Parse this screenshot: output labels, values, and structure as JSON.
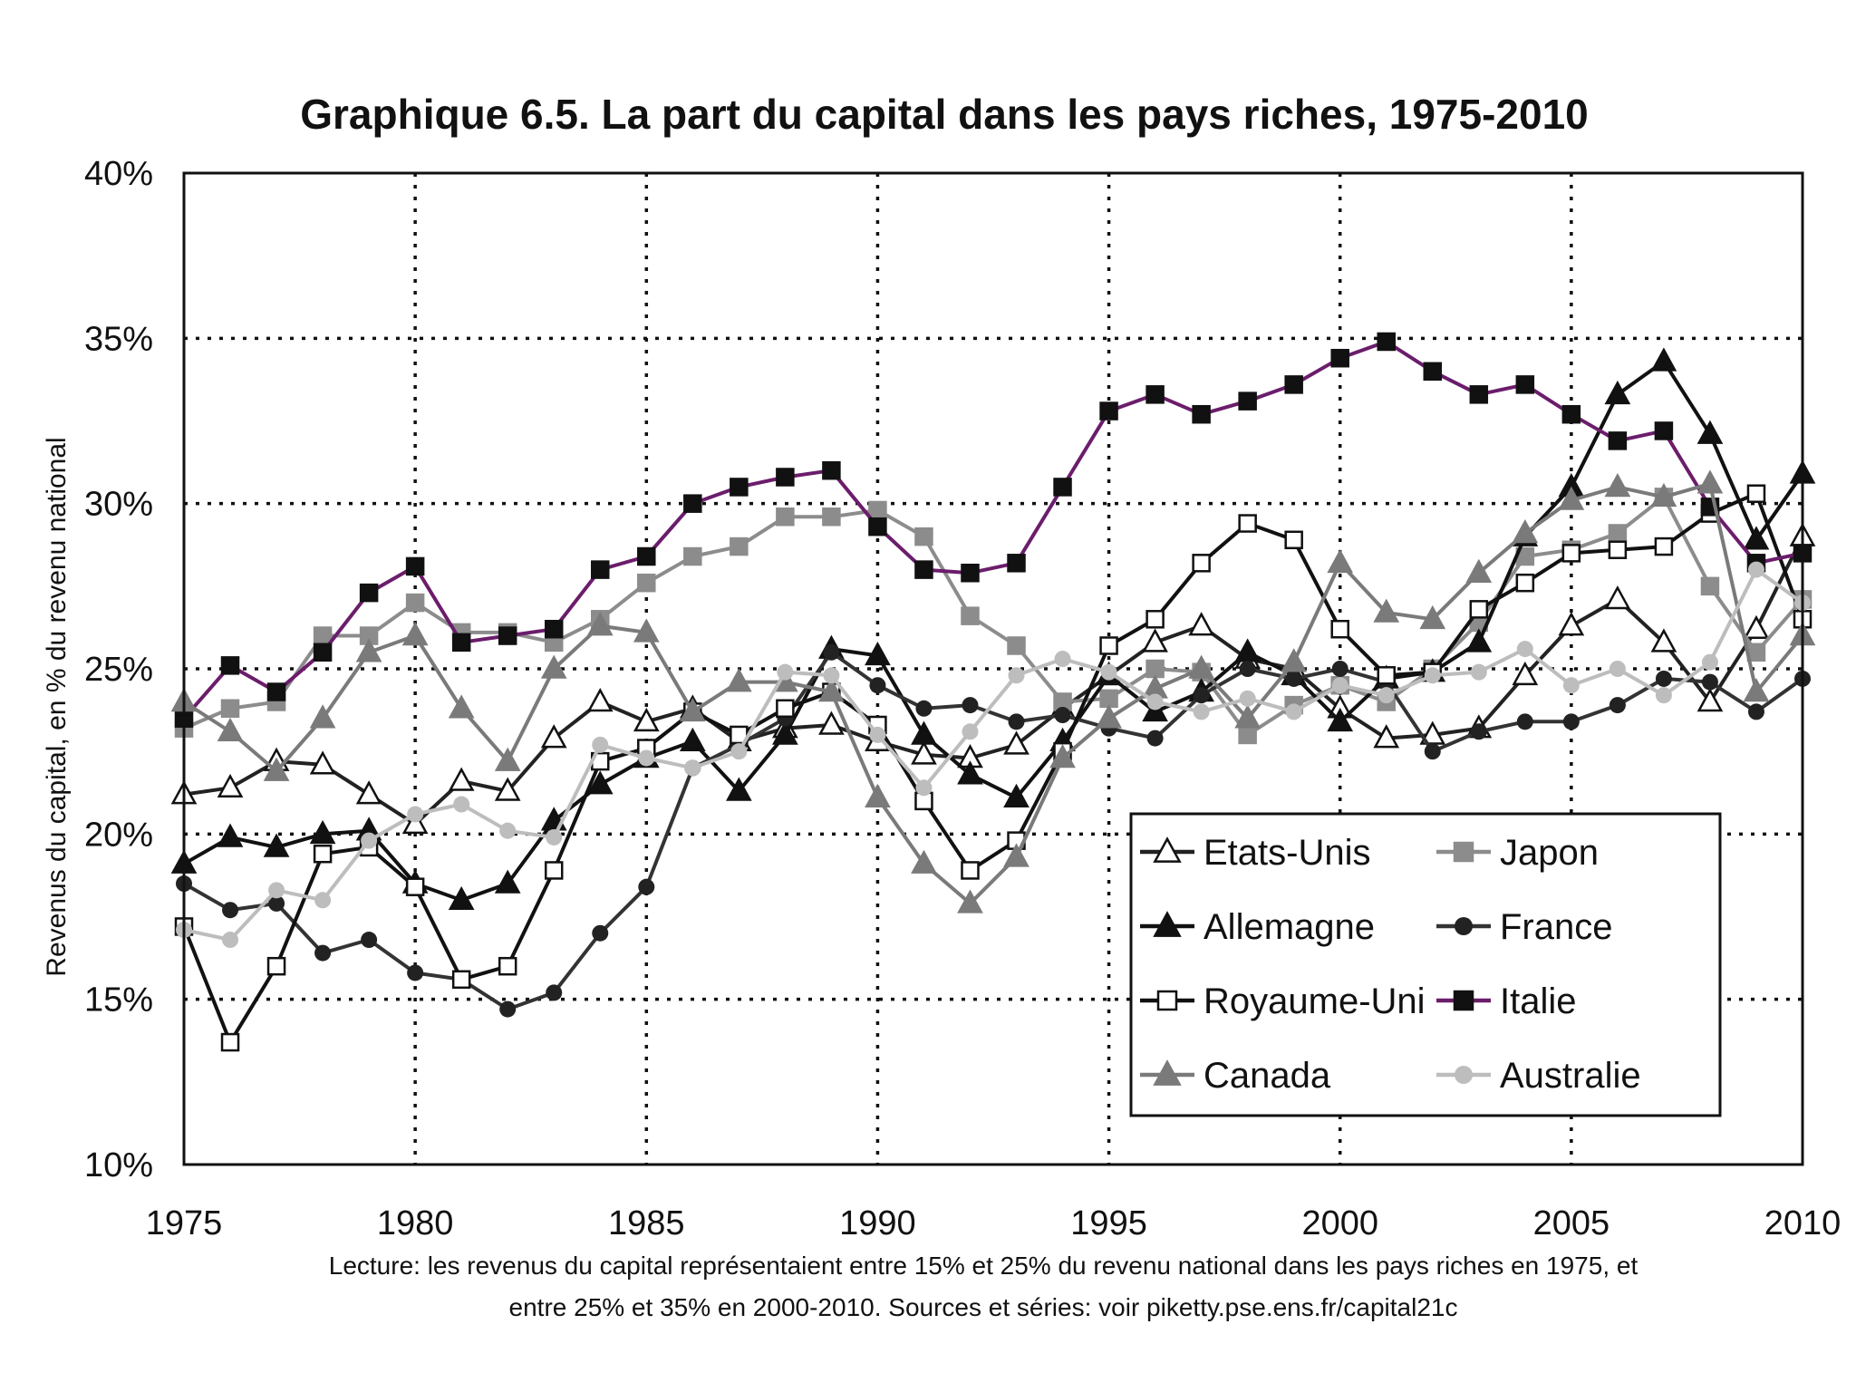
{
  "chart_data": {
    "type": "line",
    "title": "Graphique 6.5. La part du capital dans les pays riches, 1975-2010",
    "xlabel": "",
    "ylabel": "Revenus du capital, en % du revenu national",
    "xlim": [
      1975,
      2010
    ],
    "ylim": [
      10,
      40
    ],
    "x_ticks": [
      1975,
      1980,
      1985,
      1990,
      1995,
      2000,
      2005,
      2010
    ],
    "x_tick_labels": [
      "1975",
      "1980",
      "1985",
      "1990",
      "1995",
      "2000",
      "2005",
      "2010"
    ],
    "y_ticks": [
      10,
      15,
      20,
      25,
      30,
      35,
      40
    ],
    "y_tick_labels": [
      "10%",
      "15%",
      "20%",
      "25%",
      "30%",
      "35%",
      "40%"
    ],
    "grid": "dotted",
    "legend_position": "bottom-right",
    "caption_lines": [
      "Lecture: les revenus du capital représentaient entre 15% et 25% du revenu national dans les pays riches en 1975, et",
      "entre 25% et 35% en 2000-2010. Sources et séries: voir piketty.pse.ens.fr/capital21c"
    ],
    "x": [
      1975,
      1976,
      1977,
      1978,
      1979,
      1980,
      1981,
      1982,
      1983,
      1984,
      1985,
      1986,
      1987,
      1988,
      1989,
      1990,
      1991,
      1992,
      1993,
      1994,
      1995,
      1996,
      1997,
      1998,
      1999,
      2000,
      2001,
      2002,
      2003,
      2004,
      2005,
      2006,
      2007,
      2008,
      2009,
      2010
    ],
    "series": [
      {
        "name": "Etats-Unis",
        "color": "#222222",
        "marker": "triangle-open",
        "values": [
          21.2,
          21.4,
          22.2,
          22.1,
          21.2,
          20.3,
          21.6,
          21.3,
          22.9,
          24.0,
          23.4,
          23.8,
          22.8,
          23.2,
          23.3,
          22.8,
          22.4,
          22.3,
          22.7,
          23.8,
          24.8,
          25.8,
          26.3,
          25.3,
          25.0,
          23.8,
          22.9,
          23.0,
          23.2,
          24.8,
          26.3,
          27.1,
          25.8,
          24.0,
          26.2,
          29.0
        ]
      },
      {
        "name": "Japon",
        "color": "#8c8c8c",
        "marker": "square-filled",
        "values": [
          23.2,
          23.8,
          24.0,
          26.0,
          26.0,
          27.0,
          26.1,
          26.1,
          25.8,
          26.5,
          27.6,
          28.4,
          28.7,
          29.6,
          29.6,
          29.8,
          29.0,
          26.6,
          25.7,
          24.0,
          24.1,
          25.0,
          24.9,
          23.0,
          23.9,
          24.5,
          24.0,
          25.0,
          26.4,
          28.4,
          28.6,
          29.1,
          30.2,
          27.5,
          25.5,
          27.1
        ]
      },
      {
        "name": "Allemagne",
        "color": "#111111",
        "marker": "triangle-filled",
        "values": [
          19.1,
          19.9,
          19.6,
          20.0,
          20.1,
          18.5,
          18.0,
          18.5,
          20.4,
          21.5,
          22.3,
          22.8,
          21.3,
          23.0,
          25.6,
          25.4,
          23.0,
          21.8,
          21.1,
          22.8,
          24.8,
          23.7,
          24.3,
          25.5,
          24.8,
          23.4,
          24.7,
          24.9,
          25.8,
          29.0,
          30.5,
          33.3,
          34.3,
          32.1,
          28.9,
          30.9
        ]
      },
      {
        "name": "France",
        "color": "#333333",
        "marker": "circle-filled",
        "values": [
          18.5,
          17.7,
          17.9,
          16.4,
          16.8,
          15.8,
          15.6,
          14.7,
          15.2,
          17.0,
          18.4,
          22.0,
          22.7,
          23.5,
          25.5,
          24.5,
          23.8,
          23.9,
          23.4,
          23.6,
          23.2,
          22.9,
          24.2,
          25.0,
          24.7,
          25.0,
          24.6,
          22.5,
          23.1,
          23.4,
          23.4,
          23.9,
          24.7,
          24.6,
          23.7,
          24.7
        ]
      },
      {
        "name": "Royaume-Uni",
        "color": "#111111",
        "marker": "square-open",
        "values": [
          17.2,
          13.7,
          16.0,
          19.4,
          19.6,
          18.4,
          15.6,
          16.0,
          18.9,
          22.2,
          22.6,
          23.7,
          23.0,
          23.8,
          24.3,
          23.3,
          21.0,
          18.9,
          19.8,
          22.5,
          25.7,
          26.5,
          28.2,
          29.4,
          28.9,
          26.2,
          24.8,
          24.9,
          26.8,
          27.6,
          28.5,
          28.6,
          28.7,
          29.7,
          30.3,
          26.5
        ]
      },
      {
        "name": "Italie",
        "color": "#6b1d6b",
        "marker": "square-filled-dark",
        "values": [
          23.5,
          25.1,
          24.3,
          25.5,
          27.3,
          28.1,
          25.8,
          26.0,
          26.2,
          28.0,
          28.4,
          30.0,
          30.5,
          30.8,
          31.0,
          29.3,
          28.0,
          27.9,
          28.2,
          30.5,
          32.8,
          33.3,
          32.7,
          33.1,
          33.6,
          34.4,
          34.9,
          34.0,
          33.3,
          33.6,
          32.7,
          31.9,
          32.2,
          29.9,
          28.2,
          28.5
        ]
      },
      {
        "name": "Canada",
        "color": "#7a7a7a",
        "marker": "triangle-filled-gray",
        "values": [
          24.0,
          23.1,
          21.9,
          23.5,
          25.5,
          26.0,
          23.8,
          22.2,
          25.0,
          26.3,
          26.1,
          23.7,
          24.6,
          24.6,
          24.3,
          21.1,
          19.1,
          17.9,
          19.3,
          22.3,
          23.5,
          24.4,
          25.0,
          23.5,
          25.2,
          28.2,
          26.7,
          26.5,
          27.9,
          29.1,
          30.1,
          30.5,
          30.2,
          30.6,
          24.3,
          26.0
        ]
      },
      {
        "name": "Australie",
        "color": "#bdbdbd",
        "marker": "circle-filled-light",
        "values": [
          17.1,
          16.8,
          18.3,
          18.0,
          19.8,
          20.6,
          20.9,
          20.1,
          19.9,
          22.7,
          22.3,
          22.0,
          22.5,
          24.9,
          24.8,
          23.0,
          21.4,
          23.1,
          24.8,
          25.3,
          24.9,
          24.0,
          23.7,
          24.1,
          23.7,
          24.5,
          24.2,
          24.8,
          24.9,
          25.6,
          24.5,
          25.0,
          24.2,
          25.2,
          28.0,
          27.0
        ]
      }
    ]
  }
}
